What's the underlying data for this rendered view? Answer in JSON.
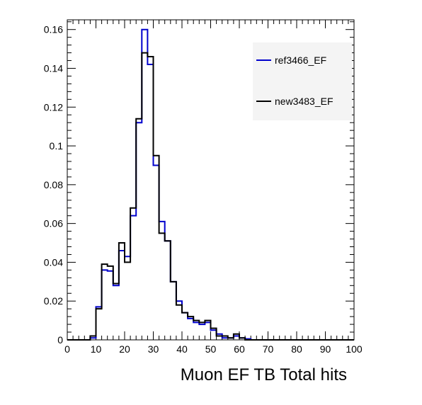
{
  "chart_data": {
    "type": "line",
    "style": "step-histogram",
    "xlabel": "Muon EF TB Total hits",
    "ylabel": "",
    "title": "",
    "xlim": [
      0,
      100
    ],
    "ylim": [
      0,
      0.165
    ],
    "bin_width": 2,
    "x_ticks": [
      "0",
      "10",
      "20",
      "30",
      "40",
      "50",
      "60",
      "70",
      "80",
      "90",
      "100"
    ],
    "y_ticks": [
      "0",
      "0.02",
      "0.04",
      "0.06",
      "0.08",
      "0.1",
      "0.12",
      "0.14",
      "0.16"
    ],
    "x_tick_values": [
      0,
      10,
      20,
      30,
      40,
      50,
      60,
      70,
      80,
      90,
      100
    ],
    "y_tick_values": [
      0,
      0.02,
      0.04,
      0.06,
      0.08,
      0.1,
      0.12,
      0.14,
      0.16
    ],
    "grid": false,
    "legend_position": "top-right",
    "series": [
      {
        "name": "ref3466_EF",
        "color": "#0000cc",
        "bin_edges": [
          0,
          2,
          4,
          6,
          8,
          10,
          12,
          14,
          16,
          18,
          20,
          22,
          24,
          26,
          28,
          30,
          32,
          34,
          36,
          38,
          40,
          42,
          44,
          46,
          48,
          50,
          52,
          54,
          56,
          58,
          60,
          62,
          64,
          66,
          68,
          70,
          72,
          74,
          76,
          78,
          80,
          82,
          84,
          86,
          88,
          90,
          92,
          94,
          96,
          98,
          100
        ],
        "values": [
          0,
          0,
          0,
          0,
          0.001,
          0.017,
          0.036,
          0.0355,
          0.028,
          0.046,
          0.043,
          0.064,
          0.112,
          0.16,
          0.142,
          0.09,
          0.061,
          0.051,
          0.03,
          0.02,
          0.014,
          0.011,
          0.009,
          0.008,
          0.009,
          0.005,
          0.003,
          0.001,
          0.001,
          0.002,
          0.001,
          0.0005,
          0,
          0,
          0,
          0,
          0,
          0,
          0,
          0,
          0,
          0,
          0,
          0,
          0,
          0,
          0,
          0,
          0,
          0
        ]
      },
      {
        "name": "new3483_EF",
        "color": "#000000",
        "bin_edges": [
          0,
          2,
          4,
          6,
          8,
          10,
          12,
          14,
          16,
          18,
          20,
          22,
          24,
          26,
          28,
          30,
          32,
          34,
          36,
          38,
          40,
          42,
          44,
          46,
          48,
          50,
          52,
          54,
          56,
          58,
          60,
          62,
          64,
          66,
          68,
          70,
          72,
          74,
          76,
          78,
          80,
          82,
          84,
          86,
          88,
          90,
          92,
          94,
          96,
          98,
          100
        ],
        "values": [
          0,
          0,
          0,
          0,
          0.002,
          0.016,
          0.039,
          0.038,
          0.029,
          0.05,
          0.04,
          0.068,
          0.114,
          0.148,
          0.146,
          0.095,
          0.055,
          0.051,
          0.03,
          0.018,
          0.014,
          0.012,
          0.01,
          0.009,
          0.01,
          0.006,
          0.002,
          0.002,
          0.001,
          0.003,
          0.001,
          0,
          0,
          0,
          0,
          0,
          0,
          0,
          0,
          0,
          0,
          0,
          0,
          0,
          0,
          0,
          0,
          0,
          0,
          0
        ]
      }
    ]
  }
}
